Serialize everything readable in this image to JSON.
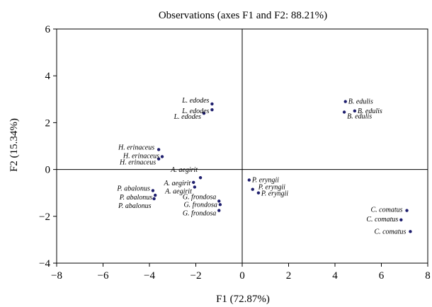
{
  "chart_data": {
    "type": "scatter",
    "title": "Observations (axes F1 and F2: 88.21%)",
    "xlabel": "F1 (72.87%)",
    "ylabel": "F2 (15.34%)",
    "xlim": [
      -8,
      8
    ],
    "ylim": [
      -4,
      6
    ],
    "xticks": [
      -8,
      -6,
      -4,
      -2,
      0,
      2,
      4,
      6,
      8
    ],
    "yticks": [
      -4,
      -2,
      0,
      2,
      4,
      6
    ],
    "xtick_labels": [
      "−8",
      "−6",
      "−4",
      "−2",
      "0",
      "2",
      "4",
      "6",
      "8"
    ],
    "ytick_labels": [
      "−4",
      "−2",
      "0",
      "2",
      "4",
      "6"
    ],
    "point_color": "#1f1f6e",
    "points": [
      {
        "x": -1.3,
        "y": 2.8,
        "label": "L. edodes",
        "anchor": "end",
        "dx": -4,
        "dy": -2
      },
      {
        "x": -1.3,
        "y": 2.55,
        "label": "L. edodes",
        "anchor": "end",
        "dx": -4,
        "dy": 5
      },
      {
        "x": -1.65,
        "y": 2.4,
        "label": "L. edodes",
        "anchor": "end",
        "dx": -4,
        "dy": 8
      },
      {
        "x": 4.45,
        "y": 2.9,
        "label": "B. edulis",
        "anchor": "start",
        "dx": 4,
        "dy": 3
      },
      {
        "x": 4.85,
        "y": 2.5,
        "label": "B. edulis",
        "anchor": "start",
        "dx": 4,
        "dy": 3
      },
      {
        "x": 4.4,
        "y": 2.45,
        "label": "B. edulis",
        "anchor": "start",
        "dx": 4,
        "dy": 9
      },
      {
        "x": -3.6,
        "y": 0.85,
        "label": "H. erinaceus",
        "anchor": "end",
        "dx": -6,
        "dy": 0
      },
      {
        "x": -3.45,
        "y": 0.55,
        "label": "H. erinaceus",
        "anchor": "end",
        "dx": -4,
        "dy": 2
      },
      {
        "x": -3.6,
        "y": 0.45,
        "label": "H. erinaceus",
        "anchor": "end",
        "dx": -4,
        "dy": 8
      },
      {
        "x": -1.8,
        "y": -0.35,
        "label": "A. aegirit",
        "anchor": "end",
        "dx": -4,
        "dy": -8
      },
      {
        "x": -2.1,
        "y": -0.55,
        "label": "A. aegirit",
        "anchor": "end",
        "dx": -4,
        "dy": 4
      },
      {
        "x": -2.05,
        "y": -0.75,
        "label": "A. aegirit",
        "anchor": "end",
        "dx": -4,
        "dy": 9
      },
      {
        "x": -3.85,
        "y": -0.9,
        "label": "P. abalonus",
        "anchor": "end",
        "dx": -4,
        "dy": 0
      },
      {
        "x": -3.75,
        "y": -1.1,
        "label": "P. abalonus",
        "anchor": "end",
        "dx": -4,
        "dy": 6
      },
      {
        "x": -3.8,
        "y": -1.25,
        "label": "P. abalonus",
        "anchor": "end",
        "dx": -4,
        "dy": 13
      },
      {
        "x": -1.0,
        "y": -1.35,
        "label": "G. frondosa",
        "anchor": "end",
        "dx": -4,
        "dy": -3
      },
      {
        "x": -0.95,
        "y": -1.5,
        "label": "G. frondosa",
        "anchor": "end",
        "dx": -4,
        "dy": 3
      },
      {
        "x": -1.0,
        "y": -1.75,
        "label": "G. frondosa",
        "anchor": "end",
        "dx": -4,
        "dy": 7
      },
      {
        "x": 0.3,
        "y": -0.45,
        "label": "P. eryngii",
        "anchor": "start",
        "dx": 4,
        "dy": 3
      },
      {
        "x": 0.45,
        "y": -0.85,
        "label": "P. eryngii",
        "anchor": "start",
        "dx": 8,
        "dy": 0
      },
      {
        "x": 0.7,
        "y": -1.0,
        "label": "P. eryngii",
        "anchor": "start",
        "dx": 4,
        "dy": 4
      },
      {
        "x": 7.1,
        "y": -1.75,
        "label": "C. comatus",
        "anchor": "end",
        "dx": -6,
        "dy": 2
      },
      {
        "x": 6.85,
        "y": -2.15,
        "label": "C. comatus",
        "anchor": "end",
        "dx": -4,
        "dy": 2
      },
      {
        "x": 7.25,
        "y": -2.65,
        "label": "C. comatus",
        "anchor": "end",
        "dx": -6,
        "dy": 3
      }
    ]
  }
}
